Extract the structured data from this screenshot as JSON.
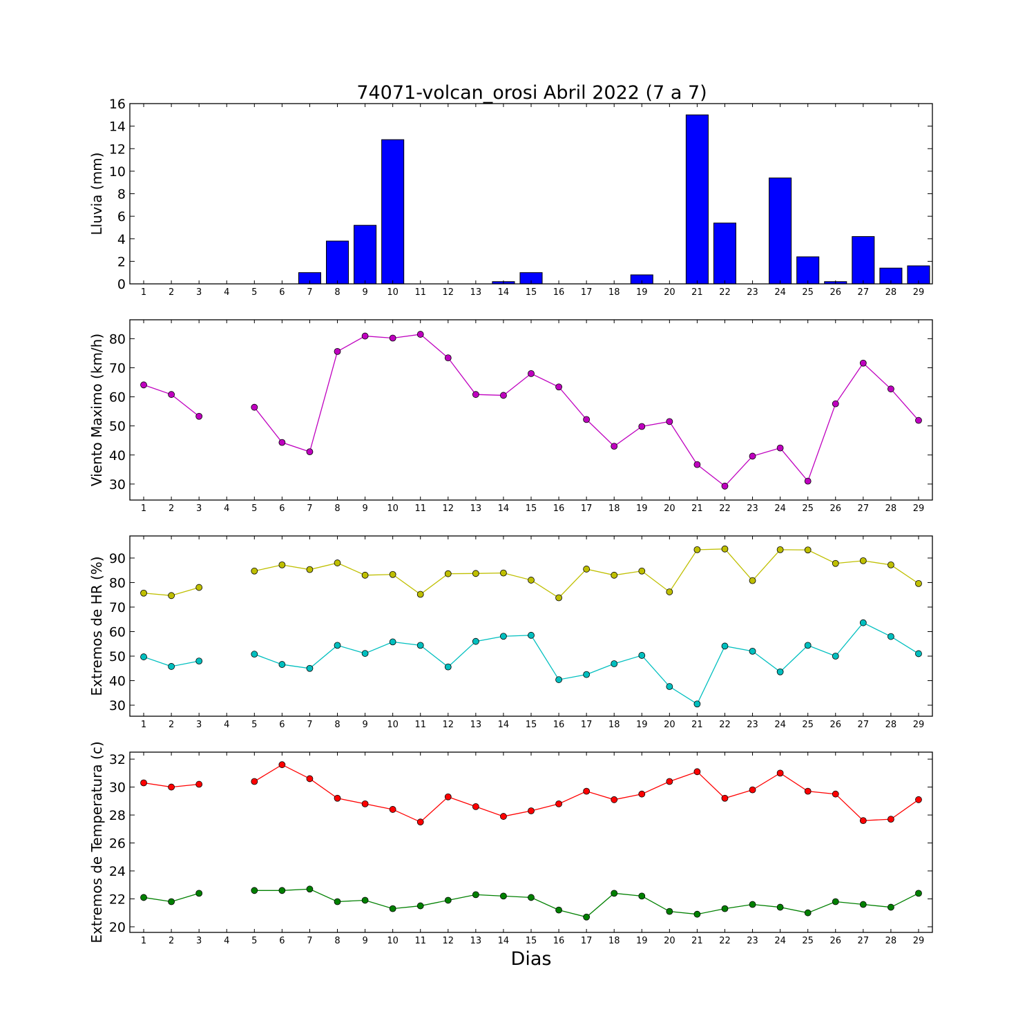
{
  "title": "74071-volcan_orosi Abril 2022  (7 a 7)",
  "xlabel": "Dias",
  "chart_data": [
    {
      "type": "bar",
      "ylabel": "Lluvia (mm)",
      "ylim": [
        0,
        16
      ],
      "yticks": [
        0,
        2,
        4,
        6,
        8,
        10,
        12,
        14,
        16
      ],
      "categories": [
        1,
        2,
        3,
        4,
        5,
        6,
        7,
        8,
        9,
        10,
        11,
        12,
        13,
        14,
        15,
        16,
        17,
        18,
        19,
        20,
        21,
        22,
        23,
        24,
        25,
        26,
        27,
        28,
        29
      ],
      "color": "#0000ff",
      "values": [
        0,
        0,
        0,
        0,
        0,
        0,
        1.0,
        3.8,
        5.2,
        12.8,
        0,
        0,
        0,
        0.2,
        1.0,
        0,
        0,
        0,
        0.8,
        0,
        15.0,
        5.4,
        0,
        9.4,
        2.4,
        0.2,
        4.2,
        1.4,
        1.6
      ]
    },
    {
      "type": "line",
      "ylabel": "Viento Maximo (km/h)",
      "ylim": [
        24.5,
        86.5
      ],
      "yticks": [
        30,
        40,
        50,
        60,
        70,
        80
      ],
      "x": [
        1,
        2,
        3,
        4,
        5,
        6,
        7,
        8,
        9,
        10,
        11,
        12,
        13,
        14,
        15,
        16,
        17,
        18,
        19,
        20,
        21,
        22,
        23,
        24,
        25,
        26,
        27,
        28,
        29
      ],
      "series": [
        {
          "color": "#bf00bf",
          "values": [
            64.1,
            60.8,
            53.3,
            null,
            56.4,
            44.3,
            41.1,
            75.6,
            80.9,
            80.2,
            81.5,
            73.4,
            60.8,
            60.5,
            68.0,
            63.4,
            52.2,
            43.0,
            49.8,
            51.5,
            36.7,
            29.3,
            39.6,
            42.4,
            31.0,
            57.6,
            71.6,
            62.7,
            51.9
          ]
        }
      ]
    },
    {
      "type": "line",
      "ylabel": "Extremos de HR (%)",
      "ylim": [
        25.5,
        99
      ],
      "yticks": [
        30,
        40,
        50,
        60,
        70,
        80,
        90
      ],
      "x": [
        1,
        2,
        3,
        4,
        5,
        6,
        7,
        8,
        9,
        10,
        11,
        12,
        13,
        14,
        15,
        16,
        17,
        18,
        19,
        20,
        21,
        22,
        23,
        24,
        25,
        26,
        27,
        28,
        29
      ],
      "series": [
        {
          "color": "#bfbf00",
          "values": [
            75.7,
            74.7,
            78.0,
            null,
            84.7,
            87.2,
            85.3,
            88.0,
            83.0,
            83.3,
            75.2,
            83.6,
            83.7,
            83.9,
            81.0,
            73.8,
            85.5,
            83.0,
            84.7,
            76.2,
            93.4,
            93.7,
            80.8,
            93.4,
            93.3,
            87.8,
            88.9,
            87.2,
            79.6
          ]
        },
        {
          "color": "#00bfbf",
          "values": [
            49.7,
            45.8,
            48.0,
            null,
            50.8,
            46.6,
            45.0,
            54.4,
            51.1,
            55.8,
            54.4,
            45.6,
            56.0,
            58.1,
            58.5,
            40.4,
            42.5,
            46.9,
            50.3,
            37.6,
            30.5,
            54.1,
            52.0,
            43.6,
            54.4,
            50.0,
            63.6,
            58.0,
            51.0
          ]
        }
      ]
    },
    {
      "type": "line",
      "ylabel": "Extremos de Temperatura (c)",
      "ylim": [
        19.6,
        32.5
      ],
      "yticks": [
        20,
        22,
        24,
        26,
        28,
        30,
        32
      ],
      "x": [
        1,
        2,
        3,
        4,
        5,
        6,
        7,
        8,
        9,
        10,
        11,
        12,
        13,
        14,
        15,
        16,
        17,
        18,
        19,
        20,
        21,
        22,
        23,
        24,
        25,
        26,
        27,
        28,
        29
      ],
      "series": [
        {
          "color": "#ff0000",
          "values": [
            30.3,
            30.0,
            30.2,
            null,
            30.4,
            31.6,
            30.6,
            29.2,
            28.8,
            28.4,
            27.5,
            29.3,
            28.6,
            27.9,
            28.3,
            28.8,
            29.7,
            29.1,
            29.5,
            30.4,
            31.1,
            29.2,
            29.8,
            31.0,
            29.7,
            29.5,
            27.6,
            27.7,
            29.1
          ]
        },
        {
          "color": "#008000",
          "values": [
            22.1,
            21.8,
            22.4,
            null,
            22.6,
            22.6,
            22.7,
            21.8,
            21.9,
            21.3,
            21.5,
            21.9,
            22.3,
            22.2,
            22.1,
            21.2,
            20.7,
            22.4,
            22.2,
            21.1,
            20.9,
            21.3,
            21.6,
            21.4,
            21.0,
            21.8,
            21.6,
            21.4,
            22.4
          ]
        }
      ]
    }
  ]
}
